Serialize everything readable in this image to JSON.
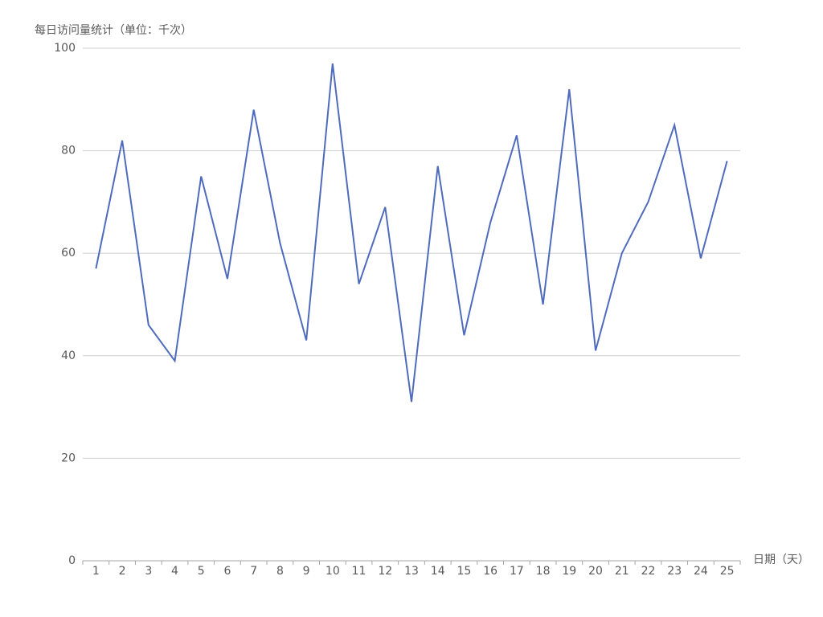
{
  "chart_data": {
    "type": "line",
    "title": "每日访问量统计（单位：千次）",
    "x_label": "日期（天）",
    "categories": [
      "1",
      "2",
      "3",
      "4",
      "5",
      "6",
      "7",
      "8",
      "9",
      "10",
      "11",
      "12",
      "13",
      "14",
      "15",
      "16",
      "17",
      "18",
      "19",
      "20",
      "21",
      "22",
      "23",
      "24",
      "25"
    ],
    "series": [
      {
        "name": "访问量",
        "color": "#4f6bbd",
        "values": [
          57,
          82,
          46,
          39,
          75,
          55,
          88,
          62,
          43,
          97,
          54,
          69,
          31,
          77,
          44,
          66,
          83,
          50,
          92,
          41,
          60,
          70,
          85,
          59,
          78
        ]
      }
    ],
    "ylim": [
      0,
      100
    ],
    "yticks": [
      0,
      20,
      40,
      60,
      80,
      100
    ],
    "grid": true
  }
}
